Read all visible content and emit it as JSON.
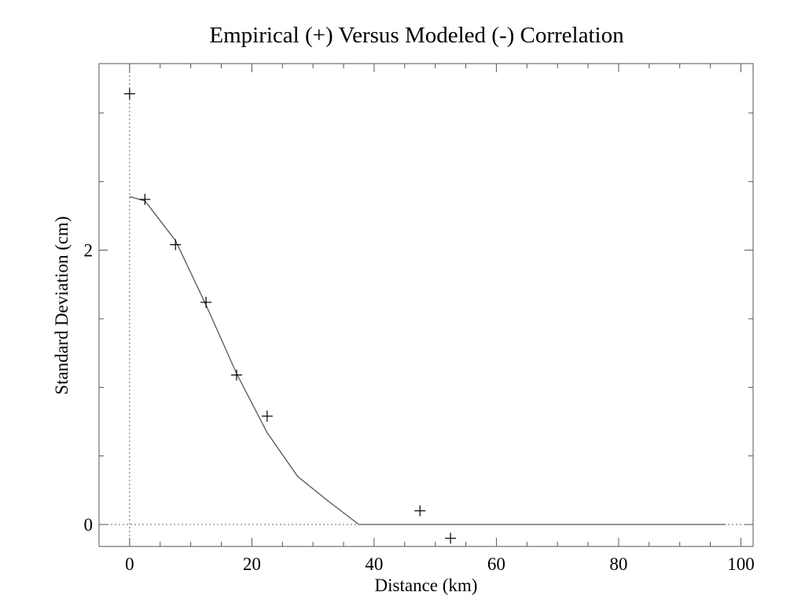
{
  "chart_data": {
    "type": "scatter",
    "title": "Empirical (+) Versus Modeled (-) Correlation",
    "xlabel": "Distance (km)",
    "ylabel": "Standard Deviation (cm)",
    "xlim": [
      -5,
      102
    ],
    "ylim": [
      -0.16,
      3.36
    ],
    "x_ticks": [
      0,
      20,
      40,
      60,
      80,
      100
    ],
    "x_tick_labels": [
      "0",
      "20",
      "40",
      "60",
      "80",
      "100"
    ],
    "x_minor_step": 5,
    "y_ticks": [
      0,
      2
    ],
    "y_tick_labels": [
      "0",
      "2"
    ],
    "y_minor_step": 0.5,
    "grid": false,
    "reference_lines": [
      {
        "orientation": "horizontal",
        "value": 0,
        "style": "dotted"
      },
      {
        "orientation": "vertical",
        "value": 0,
        "style": "dotted"
      }
    ],
    "series": [
      {
        "marker": "plus",
        "points": [
          {
            "x": 0,
            "y": 3.14
          },
          {
            "x": 2.5,
            "y": 2.37
          },
          {
            "x": 7.5,
            "y": 2.04
          },
          {
            "x": 12.5,
            "y": 1.62
          },
          {
            "x": 17.5,
            "y": 1.09
          },
          {
            "x": 22.5,
            "y": 0.79
          },
          {
            "x": 47.5,
            "y": 0.1
          },
          {
            "x": 52.5,
            "y": -0.1
          }
        ]
      },
      {
        "marker": "line",
        "points": [
          {
            "x": 0,
            "y": 2.39
          },
          {
            "x": 2.5,
            "y": 2.36
          },
          {
            "x": 7.5,
            "y": 2.07
          },
          {
            "x": 12.5,
            "y": 1.6
          },
          {
            "x": 17.5,
            "y": 1.1
          },
          {
            "x": 22.5,
            "y": 0.67
          },
          {
            "x": 27.5,
            "y": 0.35
          },
          {
            "x": 32.5,
            "y": 0.17
          },
          {
            "x": 37.5,
            "y": 0
          },
          {
            "x": 97.5,
            "y": 0
          }
        ]
      }
    ]
  }
}
